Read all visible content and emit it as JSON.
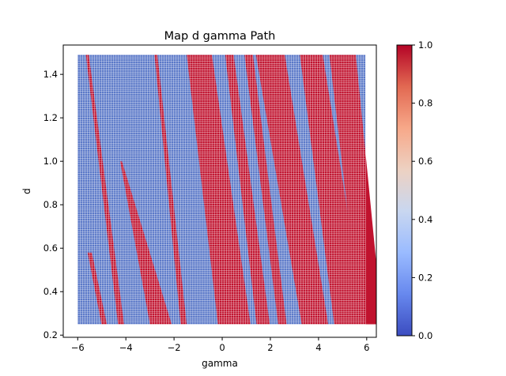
{
  "chart_data": {
    "type": "heatmap",
    "title": "Map d gamma Path",
    "xlabel": "gamma",
    "ylabel": "d",
    "xlim": [
      -6.6,
      6.4
    ],
    "ylim": [
      0.19,
      1.535
    ],
    "x_range": [
      -6.0,
      5.95
    ],
    "y_range": [
      0.25,
      1.49
    ],
    "grid_cols": 120,
    "grid_rows": 125,
    "x_ticks": [
      -6,
      -4,
      -2,
      0,
      2,
      4,
      6
    ],
    "x_tick_labels": [
      "−6",
      "−4",
      "−2",
      "0",
      "2",
      "4",
      "6"
    ],
    "y_ticks": [
      0.2,
      0.4,
      0.6,
      0.8,
      1.0,
      1.2,
      1.4
    ],
    "y_tick_labels": [
      "0.2",
      "0.4",
      "0.6",
      "0.8",
      "1.0",
      "1.2",
      "1.4"
    ],
    "colormap": "coolwarm",
    "value_low_color": "#5a78c8",
    "value_high_color": "#c0122e",
    "gridline_color": "#ffffff",
    "grid": false,
    "bands_value_1": [
      {
        "bottom": [
          -5.5,
          0.58
        ],
        "top": [
          -5.5,
          0.58
        ],
        "bottom_end": [
          -4.9,
          0.25
        ],
        "width_bottom": 0.22,
        "width_top": 0.18,
        "top_end": [
          -5.35,
          0.58
        ]
      },
      {
        "bottom": [
          -4.2,
          0.25
        ],
        "top": [
          -5.6,
          1.49
        ],
        "width_bottom": 0.25,
        "width_top": 0.12
      },
      {
        "bottom": [
          -2.55,
          0.25
        ],
        "top": [
          -4.2,
          1.0
        ],
        "width_bottom": 0.9,
        "width_top": 0.08
      },
      {
        "bottom": [
          -1.6,
          0.25
        ],
        "top": [
          -2.75,
          1.49
        ],
        "width_bottom": 0.25,
        "width_top": 0.12
      },
      {
        "bottom": [
          0.5,
          0.25
        ],
        "top": [
          -0.95,
          1.49
        ],
        "width_bottom": 1.35,
        "width_top": 1.05
      },
      {
        "bottom": [
          1.7,
          0.25
        ],
        "top": [
          0.3,
          1.49
        ],
        "width_bottom": 0.55,
        "width_top": 0.35
      },
      {
        "bottom": [
          2.5,
          0.25
        ],
        "top": [
          1.1,
          1.49
        ],
        "width_bottom": 0.35,
        "width_top": 0.35
      },
      {
        "bottom": [
          3.85,
          0.25
        ],
        "top": [
          2.0,
          1.49
        ],
        "width_bottom": 1.1,
        "width_top": 1.2
      },
      {
        "bottom": [
          5.3,
          0.25
        ],
        "top": [
          3.7,
          1.49
        ],
        "width_bottom": 1.3,
        "width_top": 0.95
      },
      {
        "bottom": [
          6.2,
          0.25
        ],
        "top": [
          5.0,
          1.49
        ],
        "width_bottom": 0.9,
        "width_top": 1.1
      }
    ],
    "colorbar": {
      "min": 0.0,
      "max": 1.0,
      "ticks": [
        0.0,
        0.2,
        0.4,
        0.6,
        0.8,
        1.0
      ],
      "tick_labels": [
        "0.0",
        "0.2",
        "0.4",
        "0.6",
        "0.8",
        "1.0"
      ],
      "stops": [
        "#3b4cc0",
        "#6788ee",
        "#9abbff",
        "#c9d7f0",
        "#edd1c2",
        "#f7a889",
        "#e26952",
        "#b40426"
      ]
    }
  }
}
